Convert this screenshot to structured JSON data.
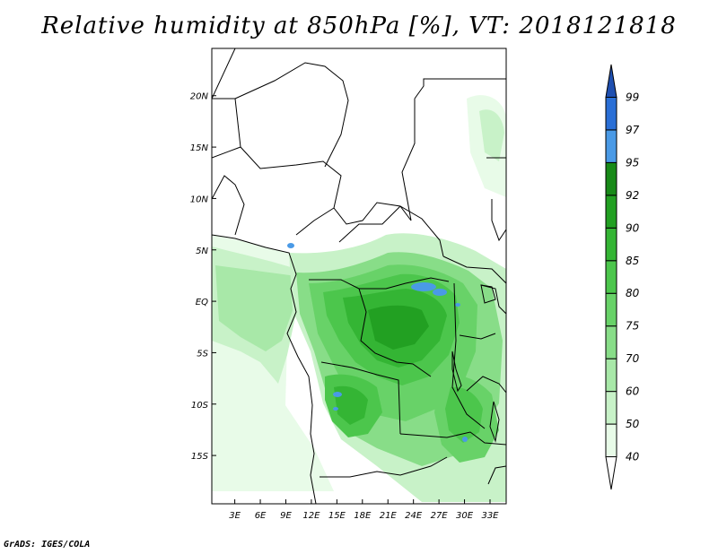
{
  "title": "Relative humidity at 850hPa [%], VT: 2018121818",
  "credit": "GrADS: IGES/COLA",
  "map": {
    "lat_labels": [
      "20N",
      "15N",
      "10N",
      "5N",
      "EQ",
      "5S",
      "10S",
      "15S"
    ],
    "lat_values": [
      20,
      15,
      10,
      5,
      0,
      -5,
      -10,
      -15
    ],
    "lon_labels": [
      "3E",
      "6E",
      "9E",
      "12E",
      "15E",
      "18E",
      "21E",
      "24E",
      "27E",
      "30E",
      "33E"
    ],
    "lon_values": [
      3,
      6,
      9,
      12,
      15,
      18,
      21,
      24,
      27,
      30,
      33
    ],
    "lat_range": [
      -19.7,
      24.6
    ],
    "lon_range": [
      0.3,
      34.9
    ]
  },
  "colorbar": {
    "labels": [
      "40",
      "50",
      "60",
      "70",
      "75",
      "80",
      "85",
      "90",
      "92",
      "95",
      "97",
      "99"
    ],
    "colors": [
      "#ffffff",
      "#e8fbe8",
      "#c8f2c8",
      "#a8e8a8",
      "#88dd88",
      "#68d268",
      "#4cc64c",
      "#34b534",
      "#22a022",
      "#188a18",
      "#4a9ae6",
      "#2a6fd6",
      "#1f4fb0"
    ]
  }
}
